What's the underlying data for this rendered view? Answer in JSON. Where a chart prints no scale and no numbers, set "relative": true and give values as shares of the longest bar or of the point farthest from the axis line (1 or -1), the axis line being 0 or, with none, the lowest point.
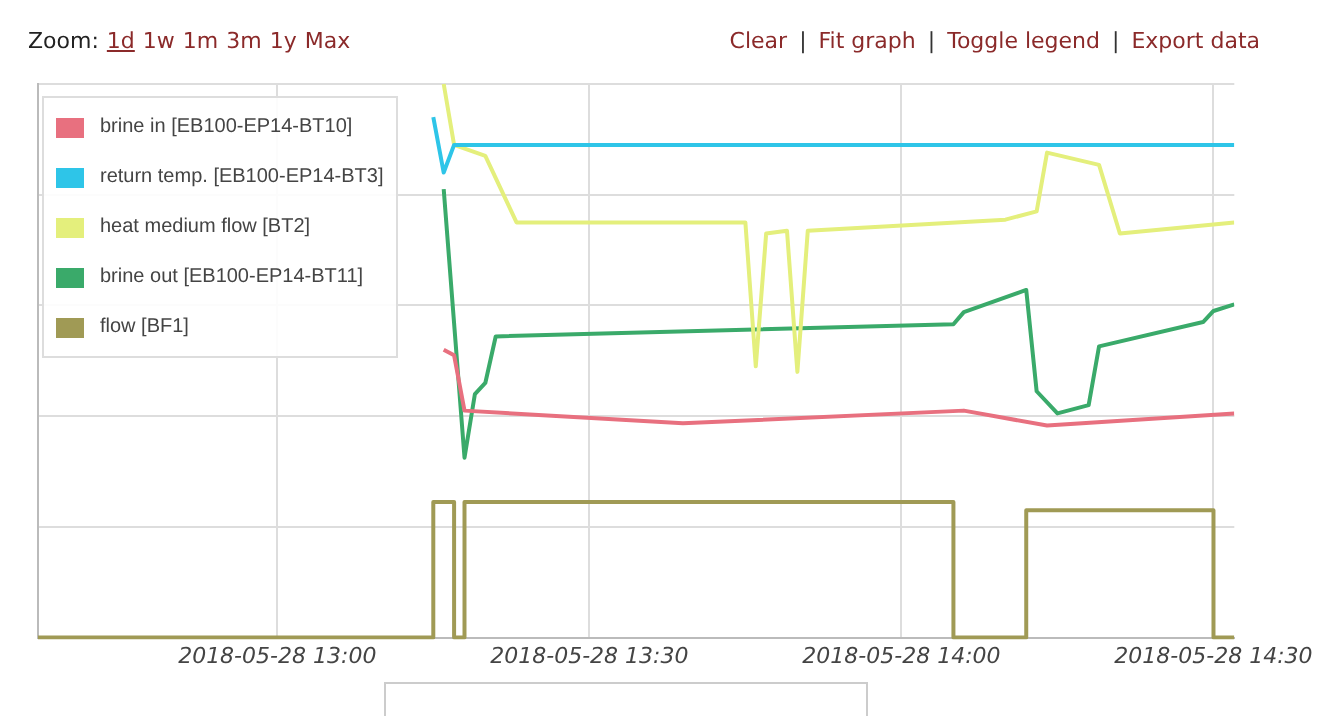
{
  "chart_data": {
    "type": "line",
    "relative": true,
    "annotations": [
      "Zoom:",
      "1d",
      "1w",
      "1m",
      "3m",
      "1y",
      "Max",
      "Clear",
      "|",
      "Fit graph",
      "|",
      "Toggle legend",
      "|",
      "Export data"
    ],
    "xlim": [
      "2018-05-28T12:37",
      "2018-05-28T14:32"
    ],
    "xticks": [
      {
        "value": "2018-05-28T13:00",
        "label": "2018-05-28 13:00"
      },
      {
        "value": "2018-05-28T13:30",
        "label": "2018-05-28 13:30"
      },
      {
        "value": "2018-05-28T14:00",
        "label": "2018-05-28 14:00"
      },
      {
        "value": "2018-05-28T14:30",
        "label": "2018-05-28 14:30"
      }
    ],
    "grid": true,
    "legend": "top left",
    "marker": "none",
    "line_style": "solid",
    "series": [
      {
        "name": "brine in [EB100-EP14-BT10]",
        "color": "#e8707f",
        "x": [
          "2018-05-28T13:16",
          "2018-05-28T13:17",
          "2018-05-28T13:18",
          "2018-05-28T13:39",
          "2018-05-28T14:06",
          "2018-05-28T14:14",
          "2018-05-28T14:32"
        ],
        "values": [
          0.52,
          0.51,
          0.41,
          0.387,
          0.41,
          0.383,
          0.405
        ]
      },
      {
        "name": "return temp. [EB100-EP14-BT3]",
        "color": "#2ec5e8",
        "x": [
          "2018-05-28T13:15",
          "2018-05-28T13:16",
          "2018-05-28T13:17",
          "2018-05-28T14:32"
        ],
        "values": [
          0.94,
          0.84,
          0.89,
          0.89
        ]
      },
      {
        "name": "heat medium flow [BT2]",
        "color": "#e4ef7c",
        "x": [
          "2018-05-28T13:16",
          "2018-05-28T13:17",
          "2018-05-28T13:20",
          "2018-05-28T13:23",
          "2018-05-28T13:45",
          "2018-05-28T13:46",
          "2018-05-28T13:47",
          "2018-05-28T13:49",
          "2018-05-28T13:50",
          "2018-05-28T13:51",
          "2018-05-28T14:10",
          "2018-05-28T14:13",
          "2018-05-28T14:14",
          "2018-05-28T14:19",
          "2018-05-28T14:21",
          "2018-05-28T14:32"
        ],
        "values": [
          1.0,
          0.89,
          0.87,
          0.75,
          0.75,
          0.49,
          0.73,
          0.735,
          0.48,
          0.735,
          0.755,
          0.77,
          0.876,
          0.854,
          0.73,
          0.75
        ]
      },
      {
        "name": "brine out [EB100-EP14-BT11]",
        "color": "#3aaa6a",
        "x": [
          "2018-05-28T13:16",
          "2018-05-28T13:18",
          "2018-05-28T13:19",
          "2018-05-28T13:20",
          "2018-05-28T13:21",
          "2018-05-28T14:05",
          "2018-05-28T14:06",
          "2018-05-28T14:12",
          "2018-05-28T14:13",
          "2018-05-28T14:15",
          "2018-05-28T14:18",
          "2018-05-28T14:19",
          "2018-05-28T14:29",
          "2018-05-28T14:30",
          "2018-05-28T14:32"
        ],
        "values": [
          0.81,
          0.325,
          0.44,
          0.46,
          0.544,
          0.566,
          0.588,
          0.628,
          0.445,
          0.405,
          0.42,
          0.526,
          0.57,
          0.59,
          0.602
        ]
      },
      {
        "name": "flow [BF1]",
        "type": "step",
        "color": "#a09a55",
        "x": [
          "2018-05-28T12:37",
          "2018-05-28T13:15",
          "2018-05-28T13:17",
          "2018-05-28T13:18",
          "2018-05-28T14:05",
          "2018-05-28T14:12",
          "2018-05-28T14:30",
          "2018-05-28T14:32"
        ],
        "values": [
          0,
          0.245,
          0,
          0.245,
          0,
          0.23,
          0,
          0
        ]
      }
    ]
  }
}
